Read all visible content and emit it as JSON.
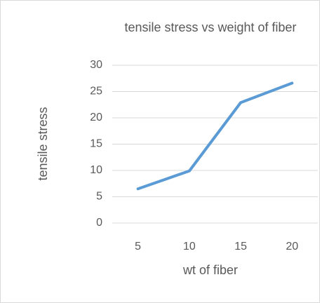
{
  "chart_data": {
    "type": "line",
    "title": "tensile stress vs weight of fiber",
    "x_label": "wt of fiber",
    "y_label": "tensile stress",
    "categories": [
      "5",
      "10",
      "15",
      "20"
    ],
    "series": [
      {
        "name": "tensile stress",
        "color": "#5b9bd5",
        "values": [
          6.5,
          9.9,
          22.9,
          26.6
        ]
      }
    ],
    "ylim": [
      0,
      30
    ],
    "yticks": [
      0,
      5,
      10,
      15,
      20,
      25,
      30
    ],
    "grid": true
  }
}
